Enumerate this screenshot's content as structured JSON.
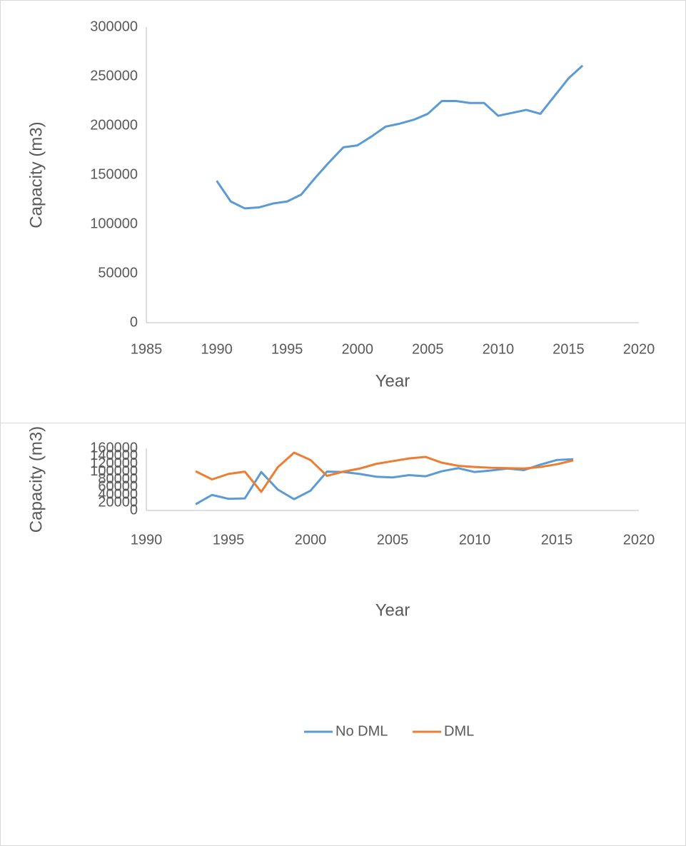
{
  "chart_data": [
    {
      "type": "line",
      "x_label": "Year",
      "y_label": "Capacity (m3)",
      "x": [
        1990,
        1991,
        1992,
        1993,
        1994,
        1995,
        1996,
        1997,
        1998,
        1999,
        2000,
        2001,
        2002,
        2003,
        2004,
        2005,
        2006,
        2007,
        2008,
        2009,
        2010,
        2011,
        2012,
        2013,
        2014,
        2015,
        2016
      ],
      "series": [
        {
          "color": "#5b9bd5",
          "values": [
            144000,
            123000,
            116000,
            117000,
            121000,
            123000,
            130000,
            147000,
            163000,
            178000,
            180000,
            189000,
            199000,
            202000,
            206000,
            212000,
            225000,
            225000,
            223000,
            223000,
            210000,
            213000,
            216000,
            212000,
            230000,
            248000,
            261000
          ]
        }
      ],
      "xlim": [
        1985,
        2020
      ],
      "xticks": [
        1985,
        1990,
        1995,
        2000,
        2005,
        2010,
        2015,
        2020
      ],
      "ylim": [
        0,
        300000
      ],
      "yticks": [
        0,
        50000,
        100000,
        150000,
        200000,
        250000,
        300000
      ]
    },
    {
      "type": "line",
      "x_label": "Year",
      "y_label": "Capacity (m3)",
      "x": [
        1993,
        1994,
        1995,
        1996,
        1997,
        1998,
        1999,
        2000,
        2001,
        2002,
        2003,
        2004,
        2005,
        2006,
        2007,
        2008,
        2009,
        2010,
        2011,
        2012,
        2013,
        2014,
        2015,
        2016
      ],
      "series": [
        {
          "name": "No DML",
          "color": "#5b9bd5",
          "values": [
            16000,
            40000,
            30000,
            31000,
            99000,
            54000,
            29000,
            51000,
            100000,
            99000,
            94000,
            87000,
            85000,
            91000,
            88000,
            101000,
            109000,
            99000,
            103000,
            108000,
            104000,
            118000,
            130000,
            132000
          ]
        },
        {
          "name": "DML",
          "color": "#ed7d31",
          "values": [
            101000,
            80000,
            94000,
            100000,
            48000,
            111000,
            149000,
            130000,
            89000,
            100000,
            108000,
            120000,
            127000,
            134000,
            138000,
            123000,
            115000,
            112000,
            110000,
            109000,
            108000,
            112000,
            119000,
            129000
          ]
        }
      ],
      "xlim": [
        1990,
        2020
      ],
      "xticks": [
        1990,
        1995,
        2000,
        2005,
        2010,
        2015,
        2020
      ],
      "ylim": [
        0,
        160000
      ],
      "yticks": [
        0,
        20000,
        40000,
        60000,
        80000,
        100000,
        120000,
        140000,
        160000
      ],
      "legend": "bottom"
    }
  ]
}
